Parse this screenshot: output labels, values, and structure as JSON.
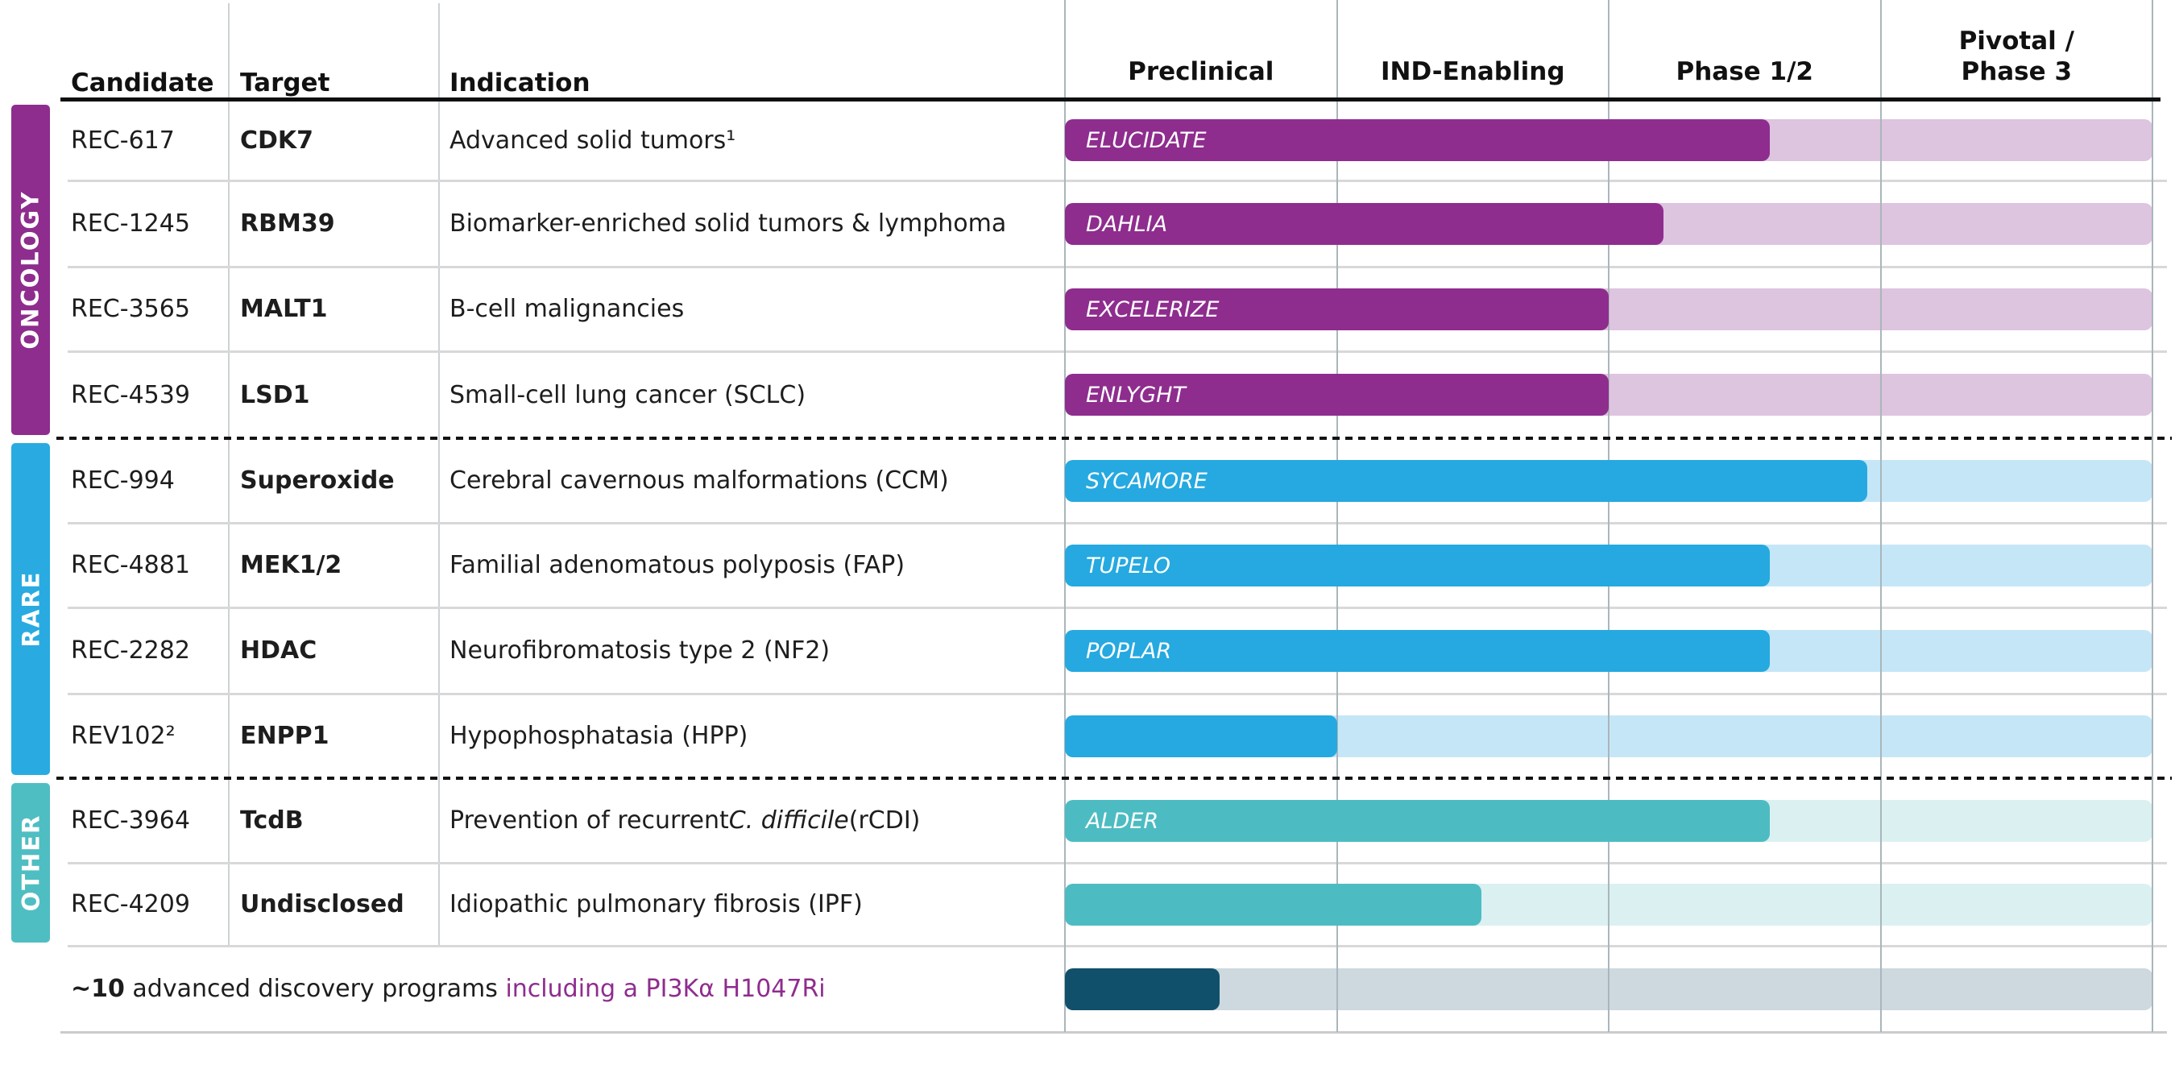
{
  "table": {
    "columns": {
      "candidate": "Candidate",
      "target": "Target",
      "indication": "Indication"
    },
    "phases": [
      {
        "label": "Preclinical"
      },
      {
        "label": "IND-Enabling"
      },
      {
        "label": "Phase 1/2"
      },
      {
        "label": "Pivotal /\nPhase 3"
      }
    ]
  },
  "groups": [
    {
      "id": "oncology",
      "label": "ONCOLOGY",
      "rows": [
        0,
        4
      ]
    },
    {
      "id": "rare",
      "label": "RARE",
      "rows": [
        4,
        8
      ]
    },
    {
      "id": "other",
      "label": "OTHER",
      "rows": [
        8,
        10
      ]
    }
  ],
  "rows": [
    {
      "group": "oncology",
      "candidate": "REC-617",
      "target": "CDK7",
      "indication": [
        {
          "t": "Advanced solid tumors¹"
        }
      ],
      "trial": "ELUCIDATE",
      "progress": 0.648
    },
    {
      "group": "oncology",
      "candidate": "REC-1245",
      "target": "RBM39",
      "indication": [
        {
          "t": "Biomarker-enriched solid tumors & lymphoma"
        }
      ],
      "trial": "DAHLIA",
      "progress": 0.55
    },
    {
      "group": "oncology",
      "candidate": "REC-3565",
      "target": "MALT1",
      "indication": [
        {
          "t": "B-cell malignancies"
        }
      ],
      "trial": "EXCELERIZE",
      "progress": 0.5
    },
    {
      "group": "oncology",
      "candidate": "REC-4539",
      "target": "LSD1",
      "indication": [
        {
          "t": "Small-cell lung cancer (SCLC)"
        }
      ],
      "trial": "ENLYGHT",
      "progress": 0.5
    },
    {
      "group": "rare",
      "candidate": "REC-994",
      "target": "Superoxide",
      "indication": [
        {
          "t": "Cerebral cavernous malformations (CCM)"
        }
      ],
      "trial": "SYCAMORE",
      "progress": 0.738
    },
    {
      "group": "rare",
      "candidate": "REC-4881",
      "target": "MEK1/2",
      "indication": [
        {
          "t": "Familial adenomatous polyposis (FAP)"
        }
      ],
      "trial": "TUPELO",
      "progress": 0.648
    },
    {
      "group": "rare",
      "candidate": "REC-2282",
      "target": "HDAC",
      "indication": [
        {
          "t": "Neurofibromatosis type 2 (NF2)"
        }
      ],
      "trial": "POPLAR",
      "progress": 0.648
    },
    {
      "group": "rare",
      "candidate": "REV102²",
      "target": "ENPP1",
      "indication": [
        {
          "t": "Hypophosphatasia (HPP)"
        }
      ],
      "trial": "",
      "progress": 0.25
    },
    {
      "group": "other",
      "candidate": "REC-3964",
      "target": "TcdB",
      "indication": [
        {
          "t": "Prevention of recurrent "
        },
        {
          "t": "C. difficile",
          "i": true
        },
        {
          "t": " (rCDI)"
        }
      ],
      "trial": "ALDER",
      "progress": 0.648
    },
    {
      "group": "other",
      "candidate": "REC-4209",
      "target": "Undisclosed",
      "indication": [
        {
          "t": "Idiopathic pulmonary fibrosis (IPF)"
        }
      ],
      "trial": "",
      "progress": 0.383
    }
  ],
  "discovery": {
    "bold": "~10",
    "plain": " advanced discovery programs ",
    "highlight": "including a PI3Kα H1047Ri",
    "progress": 0.142
  },
  "colors": {
    "oncology": {
      "bar": "#8e2d8e",
      "track": "#ddc4df",
      "side": "#8e2d8e"
    },
    "rare": {
      "bar": "#25a9e0",
      "track": "#c5e6f7",
      "side": "#29abe2"
    },
    "other": {
      "bar": "#4cbcc2",
      "track": "#dbf0f1",
      "side": "#4fbec3"
    },
    "discovery": {
      "bar": "#11506b",
      "track": "#cdd9de"
    },
    "highlight_text": "#8e2d8e"
  },
  "chart_data": {
    "type": "bar",
    "subtype": "pipeline-gantt",
    "phases": [
      "Preclinical",
      "IND-Enabling",
      "Phase 1/2",
      "Pivotal / Phase 3"
    ],
    "progress_scale": "fraction of full 4-phase track (1.0 = end of Pivotal/Phase 3)",
    "series": [
      {
        "candidate": "REC-617",
        "trial": "ELUCIDATE",
        "group": "ONCOLOGY",
        "progress": 0.648
      },
      {
        "candidate": "REC-1245",
        "trial": "DAHLIA",
        "group": "ONCOLOGY",
        "progress": 0.55
      },
      {
        "candidate": "REC-3565",
        "trial": "EXCELERIZE",
        "group": "ONCOLOGY",
        "progress": 0.5
      },
      {
        "candidate": "REC-4539",
        "trial": "ENLYGHT",
        "group": "ONCOLOGY",
        "progress": 0.5
      },
      {
        "candidate": "REC-994",
        "trial": "SYCAMORE",
        "group": "RARE",
        "progress": 0.738
      },
      {
        "candidate": "REC-4881",
        "trial": "TUPELO",
        "group": "RARE",
        "progress": 0.648
      },
      {
        "candidate": "REC-2282",
        "trial": "POPLAR",
        "group": "RARE",
        "progress": 0.648
      },
      {
        "candidate": "REV102²",
        "trial": "",
        "group": "RARE",
        "progress": 0.25
      },
      {
        "candidate": "REC-3964",
        "trial": "ALDER",
        "group": "OTHER",
        "progress": 0.648
      },
      {
        "candidate": "REC-4209",
        "trial": "",
        "group": "OTHER",
        "progress": 0.383
      },
      {
        "candidate": "~10 advanced discovery programs including a PI3Kα H1047Ri",
        "trial": "",
        "group": "DISCOVERY",
        "progress": 0.142
      }
    ]
  }
}
